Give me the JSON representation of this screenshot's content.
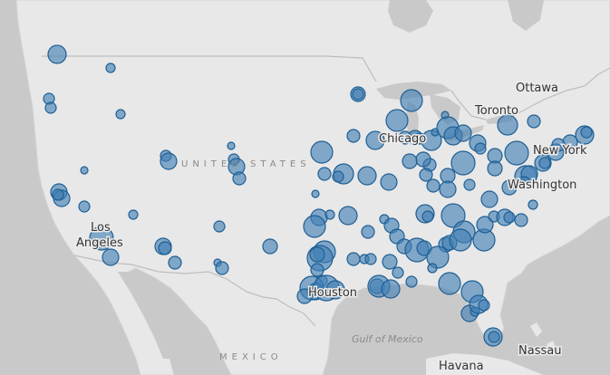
{
  "map": {
    "colors": {
      "land": "#e8e8e8",
      "water": "#c9c9c9",
      "border": "#bdbdbd",
      "marker_fill": "rgba(64,128,180,0.62)",
      "marker_stroke": "#1f5f94"
    },
    "labels": {
      "ottawa": "Ottawa",
      "toronto": "Toronto",
      "chicago": "Chicago",
      "new_york": "New York",
      "washington": "Washington",
      "los": "Los",
      "angeles": "Angeles",
      "houston": "Houston",
      "united_states": "UNITED STATES",
      "mexico": "MEXICO",
      "gulf": "Gulf of Mexico",
      "nassau": "Nassau",
      "havana": "Havana"
    }
  }
}
